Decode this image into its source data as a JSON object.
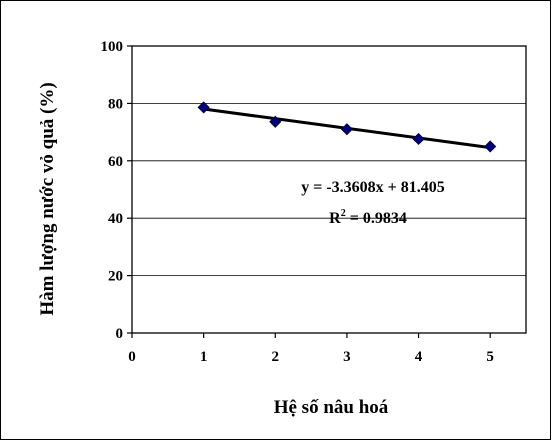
{
  "chart_data": {
    "type": "scatter",
    "xlabel": "Hệ số nâu hoá",
    "ylabel": "Hàm lượng nước vỏ quả (%)",
    "xlim": [
      0,
      5.5
    ],
    "ylim": [
      0,
      100
    ],
    "x_ticks": [
      "0",
      "1",
      "2",
      "3",
      "4",
      "5"
    ],
    "y_ticks": [
      "0",
      "20",
      "40",
      "60",
      "80",
      "100"
    ],
    "grid": "horizontal",
    "legend": "none",
    "series": [
      {
        "x": [
          1,
          2,
          3,
          4,
          5
        ],
        "y": [
          78.6,
          73.6,
          71.0,
          67.6,
          65.0
        ],
        "marker": "diamond",
        "color": "#00007a"
      }
    ],
    "trendline": {
      "slope": -3.3608,
      "intercept": 81.405,
      "x_range": [
        1,
        5
      ],
      "color": "#000000"
    },
    "annotations": {
      "equation": "y = -3.3608x + 81.405",
      "r_squared_label": "R",
      "r_squared_sup": "2",
      "r_squared_value": " = 0.9834"
    }
  }
}
